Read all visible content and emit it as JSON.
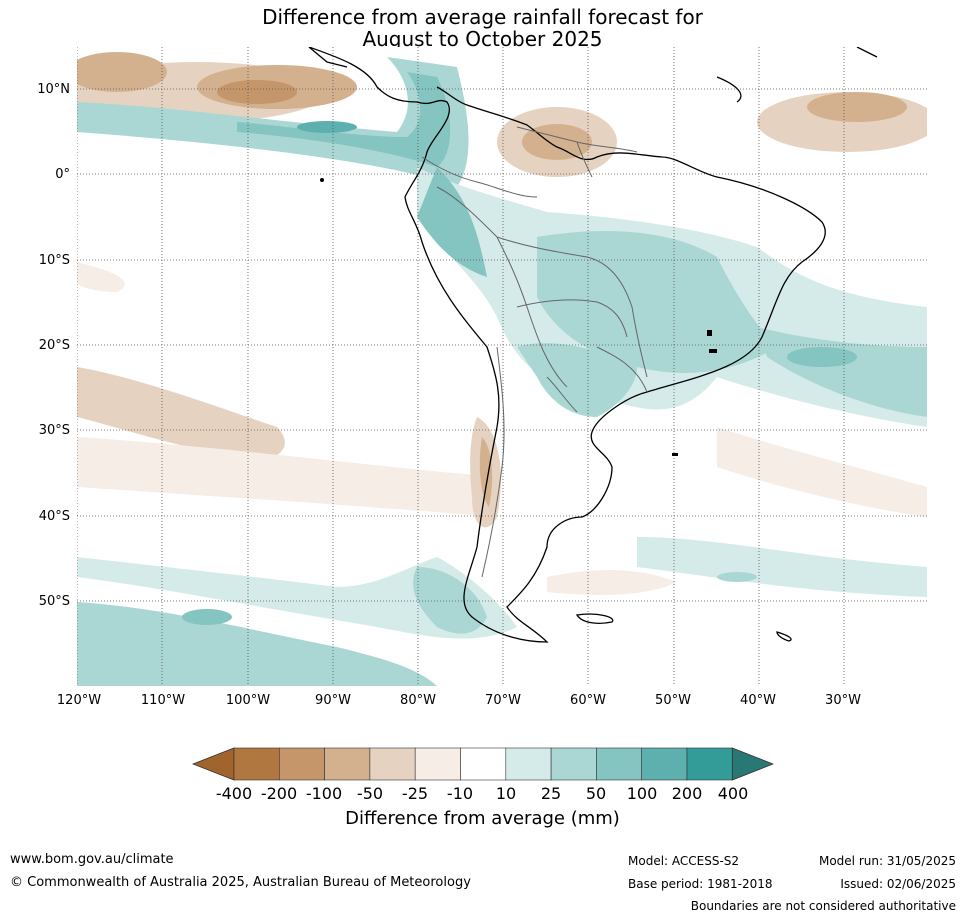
{
  "title_line1": "Difference from average rainfall forecast for",
  "title_line2": "August to October 2025",
  "lat_labels": [
    "10°N",
    "0°",
    "10°S",
    "20°S",
    "30°S",
    "40°S",
    "50°S"
  ],
  "lon_labels": [
    "120°W",
    "110°W",
    "100°W",
    "90°W",
    "80°W",
    "70°W",
    "60°W",
    "50°W",
    "40°W",
    "30°W"
  ],
  "colorbar": {
    "title": "Difference from average (mm)",
    "tick_labels": [
      "-400",
      "-200",
      "-100",
      "-50",
      "-25",
      "-10",
      "10",
      "25",
      "50",
      "100",
      "200",
      "400"
    ],
    "colors": [
      "#a0642c",
      "#b07840",
      "#c4966a",
      "#d3b18f",
      "#e6d2c0",
      "#f5ede6",
      "#ffffff",
      "#d5ebe9",
      "#aad7d4",
      "#84c4c1",
      "#5eb0ae",
      "#339b98",
      "#2a7876"
    ]
  },
  "footer": {
    "url": "www.bom.gov.au/climate",
    "copyright": "© Commonwealth of Australia 2025, Australian Bureau of Meteorology",
    "model": "Model: ACCESS-S2",
    "base_period": "Base period: 1981-2018",
    "model_run": "Model run: 31/05/2025",
    "issued": "Issued: 02/06/2025",
    "disclaimer": "Boundaries are not considered authoritative"
  }
}
